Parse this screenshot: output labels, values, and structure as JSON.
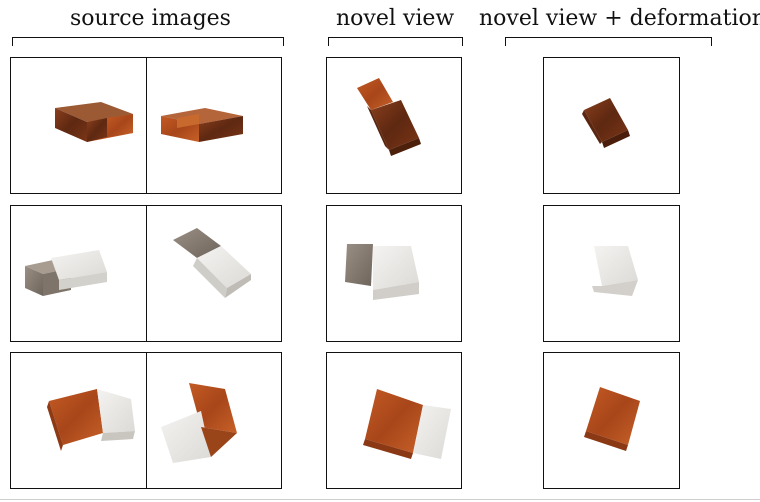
{
  "headers": {
    "source": "source images",
    "novel": "novel view",
    "novel_deform": "novel view + deformation"
  },
  "rows": [
    {
      "object": "dark wooden box with wooden drawer"
    },
    {
      "object": "grey wooden box with white drawer"
    },
    {
      "object": "wooden box with white drawer"
    }
  ],
  "colors": {
    "dark_wood": "#6b2e14",
    "wood": "#b8521f",
    "white_drawer": "#ecebe8",
    "grey_wood": "#8a7f74",
    "frame": "#111111"
  }
}
